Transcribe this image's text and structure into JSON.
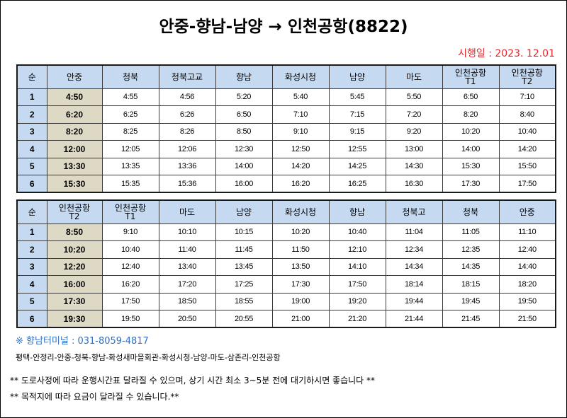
{
  "title": "안중-향남-남양 → 인천공항(8822)",
  "effective_date": "시행일 : 2023. 12.01",
  "tables": [
    {
      "headers": [
        [
          "순"
        ],
        [
          "안중"
        ],
        [
          "청북"
        ],
        [
          "청북고교"
        ],
        [
          "향남"
        ],
        [
          "화성시청"
        ],
        [
          "남양"
        ],
        [
          "마도"
        ],
        [
          "인천공항",
          "T1"
        ],
        [
          "인천공항",
          "T2"
        ]
      ],
      "rows": [
        [
          "1",
          "4:50",
          "4:55",
          "4:56",
          "5:20",
          "5:40",
          "5:45",
          "5:50",
          "6:50",
          "7:10"
        ],
        [
          "2",
          "6:20",
          "6:25",
          "6:26",
          "6:50",
          "7:10",
          "7:15",
          "7:20",
          "8:20",
          "8:40"
        ],
        [
          "3",
          "8:20",
          "8:25",
          "8:26",
          "8:50",
          "9:10",
          "9:15",
          "9:20",
          "10:20",
          "10:40"
        ],
        [
          "4",
          "12:00",
          "12:05",
          "12:06",
          "12:30",
          "12:50",
          "12:55",
          "13:00",
          "14:00",
          "14:20"
        ],
        [
          "5",
          "13:30",
          "13:35",
          "13:36",
          "14:00",
          "14:20",
          "14:25",
          "14:30",
          "15:30",
          "15:50"
        ],
        [
          "6",
          "15:30",
          "15:35",
          "15:36",
          "16:00",
          "16:20",
          "16:25",
          "16:30",
          "17:30",
          "17:50"
        ]
      ]
    },
    {
      "headers": [
        [
          "순"
        ],
        [
          "인천공항",
          "T2"
        ],
        [
          "인천공항",
          "T1"
        ],
        [
          "마도"
        ],
        [
          "남양"
        ],
        [
          "화성시청"
        ],
        [
          "향남"
        ],
        [
          "청북고"
        ],
        [
          "청북"
        ],
        [
          "안중"
        ]
      ],
      "rows": [
        [
          "1",
          "8:50",
          "9:10",
          "10:10",
          "10:15",
          "10:20",
          "10:40",
          "11:04",
          "11:05",
          "11:10"
        ],
        [
          "2",
          "10:20",
          "10:40",
          "11:40",
          "11:45",
          "11:50",
          "12:10",
          "12:34",
          "12:35",
          "12:40"
        ],
        [
          "3",
          "12:20",
          "12:40",
          "13:40",
          "13:45",
          "13:50",
          "14:10",
          "14:34",
          "14:35",
          "14:40"
        ],
        [
          "4",
          "16:00",
          "16:20",
          "17:20",
          "17:25",
          "17:30",
          "17:50",
          "18:14",
          "18:15",
          "18:20"
        ],
        [
          "5",
          "17:30",
          "17:50",
          "18:50",
          "18:55",
          "19:00",
          "19:20",
          "19:44",
          "19:45",
          "19:50"
        ],
        [
          "6",
          "19:30",
          "19:50",
          "20:50",
          "20:55",
          "21:00",
          "21:20",
          "21:44",
          "21:45",
          "21:50"
        ]
      ]
    }
  ],
  "footer": {
    "terminal_contact": "※ 향남터미널 : 031-8059-4817",
    "route": "평택-안정리-안중-청북-향남-화성새마을회관-화성시청-남양-마도-삼존리-인천공항",
    "notes": [
      "** 도로사정에 따라 운행시간표 달라질 수 있으며, 상기 시간 최소 3~5분 전에 대기하시면 좋습니다 **",
      "** 목적지에 따라 요금이 달라질 수 있습니다.**"
    ]
  },
  "colors": {
    "header_bg": "#c5d9f1",
    "first_departure_bg": "#ddd9c4",
    "date_text": "#e3262c",
    "contact_text": "#2f6fc1"
  }
}
